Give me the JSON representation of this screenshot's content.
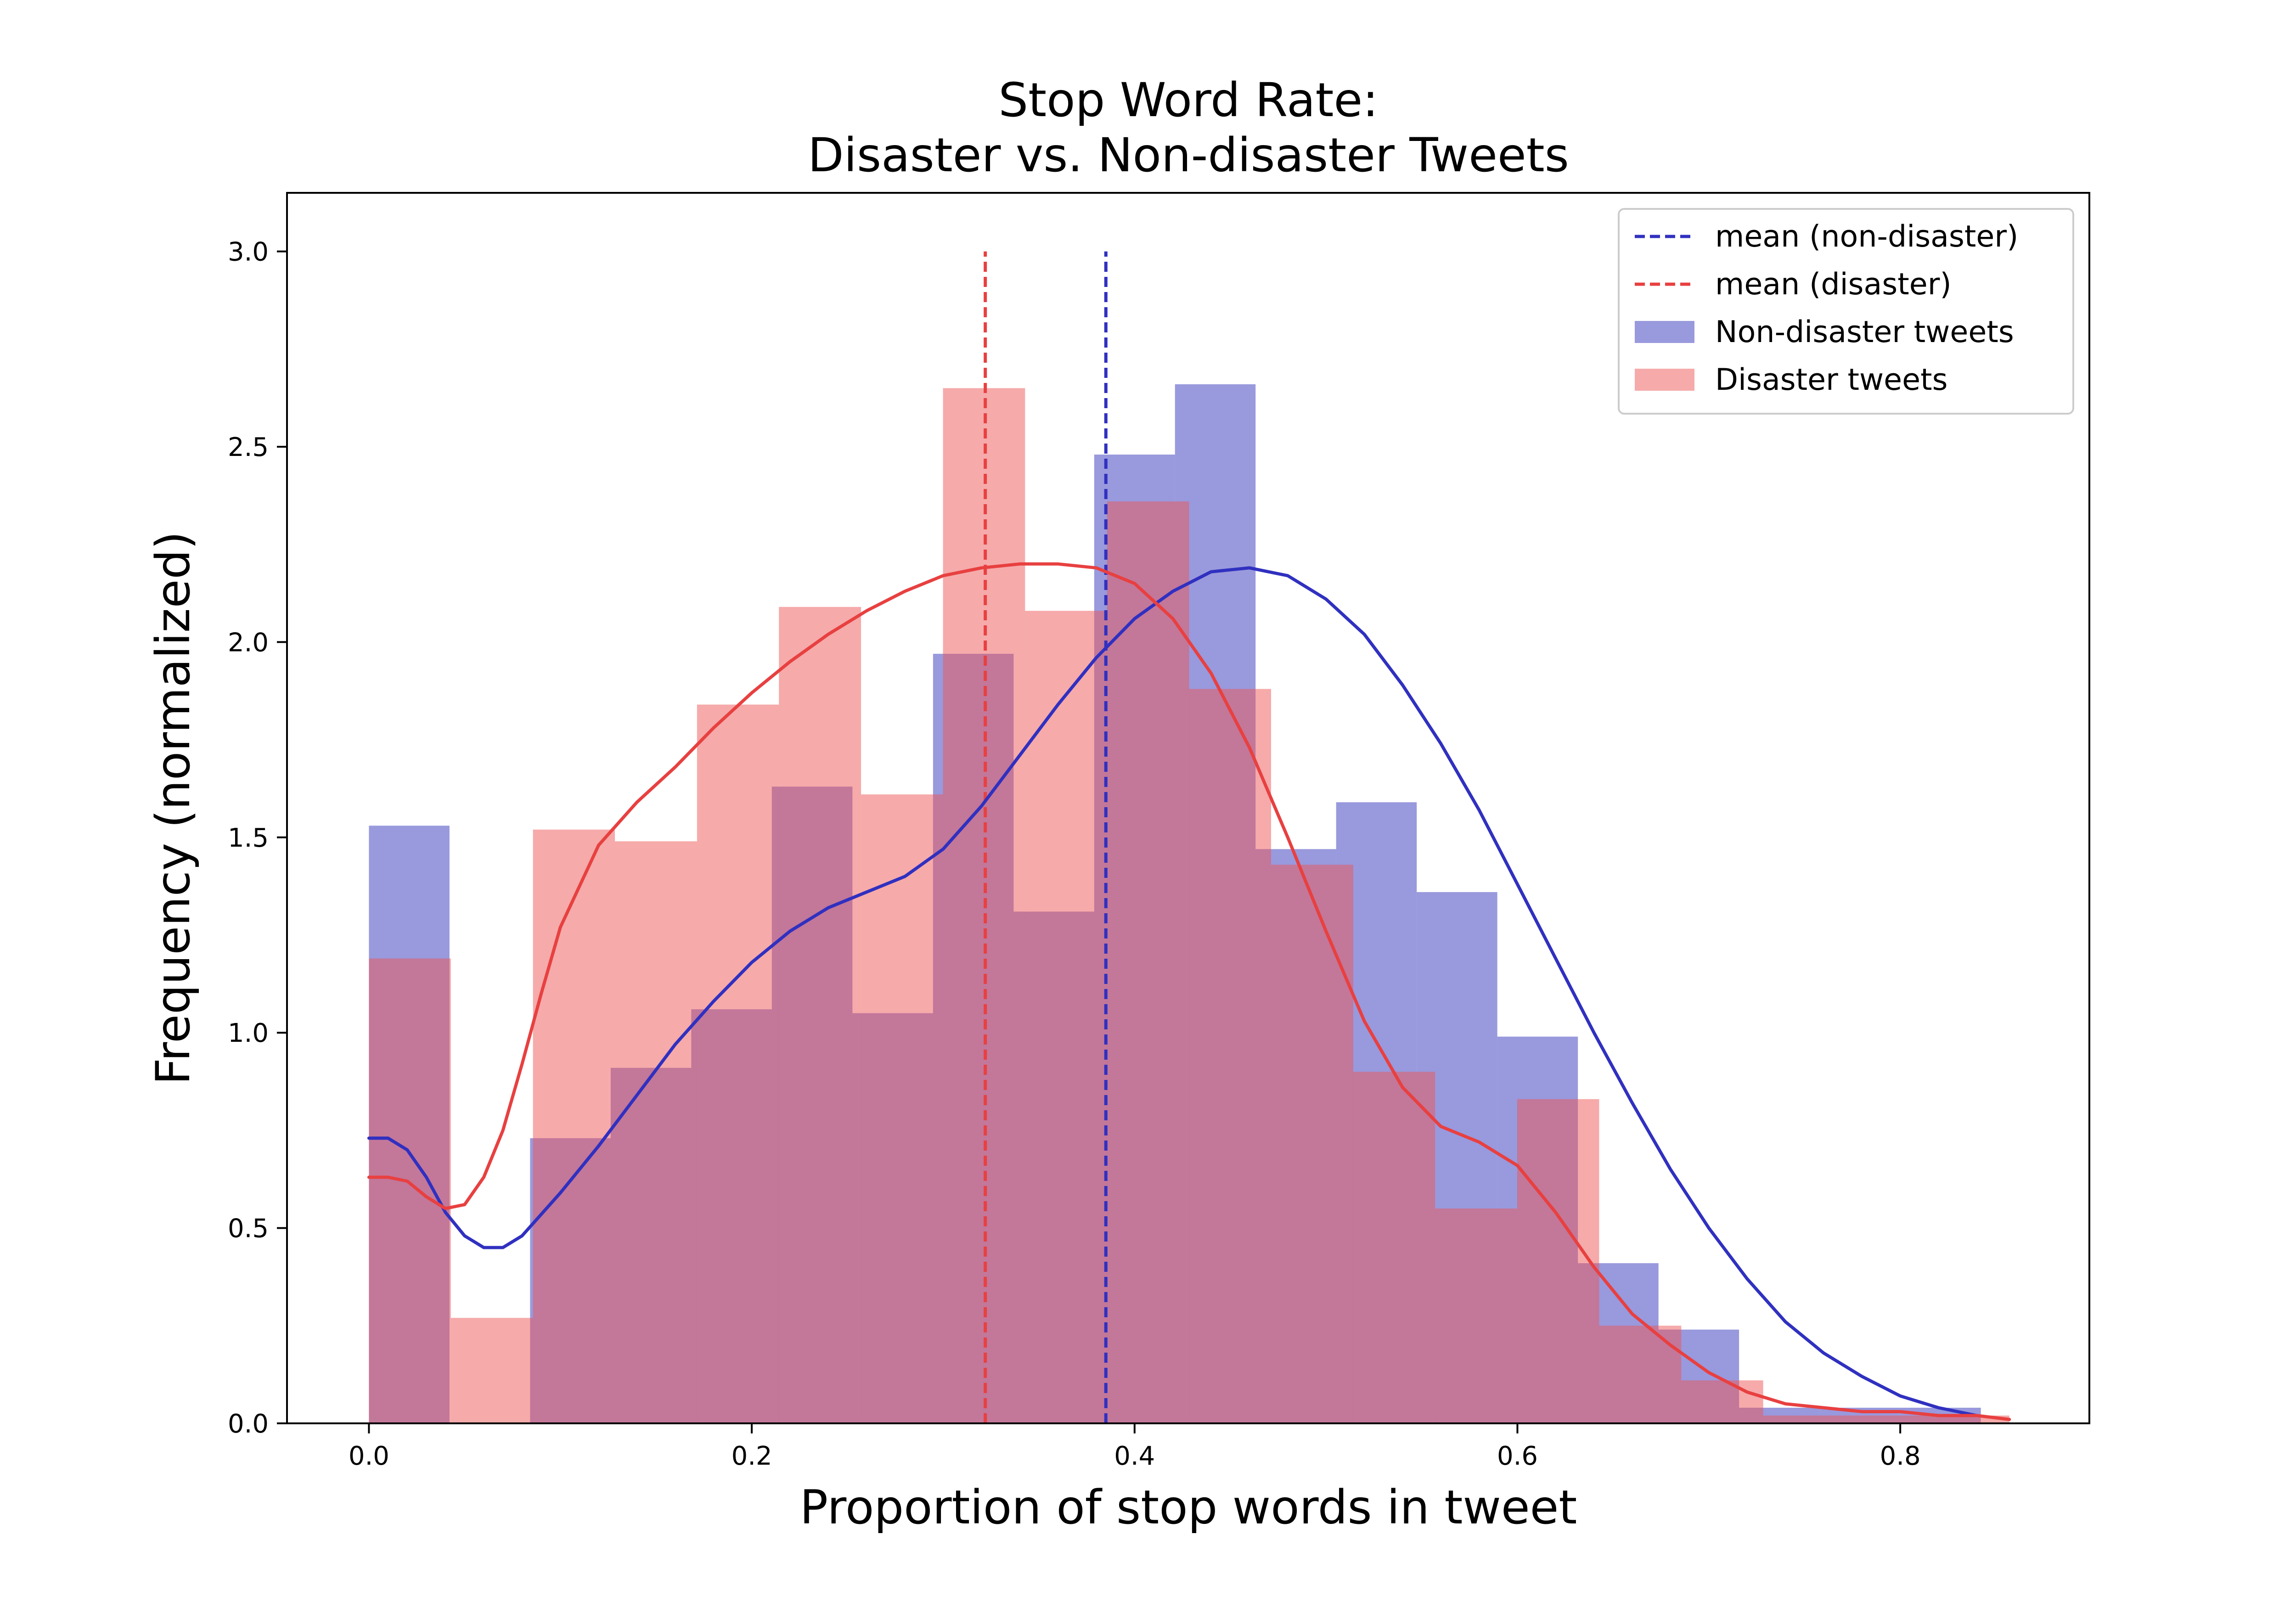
{
  "chart_data": {
    "type": "histogram",
    "title_lines": [
      "Stop Word Rate:",
      "Disaster vs. Non-disaster Tweets"
    ],
    "xlabel": "Proportion of stop words in tweet",
    "ylabel": "Frequency (normalized)",
    "xlim": [
      -0.0428,
      0.8988
    ],
    "ylim": [
      0,
      3.15
    ],
    "xticks": [
      0.0,
      0.2,
      0.4,
      0.6,
      0.8
    ],
    "xtick_labels": [
      "0.0",
      "0.2",
      "0.4",
      "0.6",
      "0.8"
    ],
    "yticks": [
      0.0,
      0.5,
      1.0,
      1.5,
      2.0,
      2.5,
      3.0
    ],
    "ytick_labels": [
      "0.0",
      "0.5",
      "1.0",
      "1.5",
      "2.0",
      "2.5",
      "3.0"
    ],
    "grid": false,
    "legend_position": "top-right",
    "legend": [
      {
        "label": "mean (non-disaster)",
        "kind": "dashed-line",
        "series": "non_disaster"
      },
      {
        "label": "mean (disaster)",
        "kind": "dashed-line",
        "series": "disaster"
      },
      {
        "label": "Non-disaster tweets",
        "kind": "patch",
        "series": "non_disaster"
      },
      {
        "label": "Disaster tweets",
        "kind": "patch",
        "series": "disaster"
      }
    ],
    "series": [
      {
        "id": "non_disaster",
        "name": "Non-disaster tweets",
        "color": "#3030c0",
        "fill_color": "#3333bb",
        "fill_opacity": 0.5,
        "bin_edges": [
          0.0,
          0.0421,
          0.0842,
          0.1263,
          0.1684,
          0.2105,
          0.2526,
          0.2947,
          0.3368,
          0.3789,
          0.4211,
          0.4632,
          0.5053,
          0.5474,
          0.5895,
          0.6316,
          0.6737,
          0.7158,
          0.7579,
          0.8,
          0.8421
        ],
        "values": [
          1.53,
          0.0,
          0.73,
          0.91,
          1.06,
          1.63,
          1.05,
          1.97,
          1.31,
          2.48,
          2.66,
          1.47,
          1.59,
          1.36,
          0.99,
          0.41,
          0.24,
          0.04,
          0.04,
          0.04
        ],
        "mean": 0.385,
        "mean_line_top": 3.0,
        "kde": [
          [
            0.0,
            0.73
          ],
          [
            0.01,
            0.73
          ],
          [
            0.02,
            0.7
          ],
          [
            0.03,
            0.63
          ],
          [
            0.04,
            0.54
          ],
          [
            0.05,
            0.48
          ],
          [
            0.06,
            0.45
          ],
          [
            0.07,
            0.45
          ],
          [
            0.08,
            0.48
          ],
          [
            0.1,
            0.59
          ],
          [
            0.12,
            0.71
          ],
          [
            0.14,
            0.84
          ],
          [
            0.16,
            0.97
          ],
          [
            0.18,
            1.08
          ],
          [
            0.2,
            1.18
          ],
          [
            0.22,
            1.26
          ],
          [
            0.24,
            1.32
          ],
          [
            0.26,
            1.36
          ],
          [
            0.28,
            1.4
          ],
          [
            0.3,
            1.47
          ],
          [
            0.32,
            1.58
          ],
          [
            0.34,
            1.71
          ],
          [
            0.36,
            1.84
          ],
          [
            0.38,
            1.96
          ],
          [
            0.4,
            2.06
          ],
          [
            0.42,
            2.13
          ],
          [
            0.44,
            2.18
          ],
          [
            0.46,
            2.19
          ],
          [
            0.48,
            2.17
          ],
          [
            0.5,
            2.11
          ],
          [
            0.52,
            2.02
          ],
          [
            0.54,
            1.89
          ],
          [
            0.56,
            1.74
          ],
          [
            0.58,
            1.57
          ],
          [
            0.6,
            1.38
          ],
          [
            0.62,
            1.19
          ],
          [
            0.64,
            1.0
          ],
          [
            0.66,
            0.82
          ],
          [
            0.68,
            0.65
          ],
          [
            0.7,
            0.5
          ],
          [
            0.72,
            0.37
          ],
          [
            0.74,
            0.26
          ],
          [
            0.76,
            0.18
          ],
          [
            0.78,
            0.12
          ],
          [
            0.8,
            0.07
          ],
          [
            0.82,
            0.04
          ],
          [
            0.84,
            0.02
          ]
        ]
      },
      {
        "id": "disaster",
        "name": "Disaster tweets",
        "color": "#e84040",
        "fill_color": "#ee5555",
        "fill_opacity": 0.5,
        "bin_edges": [
          0.0,
          0.0428,
          0.0857,
          0.1285,
          0.1714,
          0.2142,
          0.2571,
          0.2999,
          0.3428,
          0.3856,
          0.4285,
          0.4713,
          0.5142,
          0.557,
          0.5999,
          0.6427,
          0.6856,
          0.7284,
          0.7713,
          0.8141,
          0.857
        ],
        "values": [
          1.19,
          0.27,
          1.52,
          1.49,
          1.84,
          2.09,
          1.61,
          2.65,
          2.08,
          2.36,
          1.88,
          1.43,
          0.9,
          0.55,
          0.83,
          0.25,
          0.11,
          0.02,
          0.02,
          0.02
        ],
        "mean": 0.322,
        "mean_line_top": 3.0,
        "kde": [
          [
            0.0,
            0.63
          ],
          [
            0.01,
            0.63
          ],
          [
            0.02,
            0.62
          ],
          [
            0.03,
            0.58
          ],
          [
            0.04,
            0.55
          ],
          [
            0.05,
            0.56
          ],
          [
            0.06,
            0.63
          ],
          [
            0.07,
            0.75
          ],
          [
            0.08,
            0.92
          ],
          [
            0.09,
            1.1
          ],
          [
            0.1,
            1.27
          ],
          [
            0.12,
            1.48
          ],
          [
            0.14,
            1.59
          ],
          [
            0.16,
            1.68
          ],
          [
            0.18,
            1.78
          ],
          [
            0.2,
            1.87
          ],
          [
            0.22,
            1.95
          ],
          [
            0.24,
            2.02
          ],
          [
            0.26,
            2.08
          ],
          [
            0.28,
            2.13
          ],
          [
            0.3,
            2.17
          ],
          [
            0.32,
            2.19
          ],
          [
            0.34,
            2.2
          ],
          [
            0.36,
            2.2
          ],
          [
            0.38,
            2.19
          ],
          [
            0.4,
            2.15
          ],
          [
            0.42,
            2.06
          ],
          [
            0.44,
            1.92
          ],
          [
            0.46,
            1.73
          ],
          [
            0.48,
            1.5
          ],
          [
            0.5,
            1.26
          ],
          [
            0.52,
            1.03
          ],
          [
            0.54,
            0.86
          ],
          [
            0.56,
            0.76
          ],
          [
            0.58,
            0.72
          ],
          [
            0.6,
            0.66
          ],
          [
            0.62,
            0.54
          ],
          [
            0.64,
            0.4
          ],
          [
            0.66,
            0.28
          ],
          [
            0.68,
            0.2
          ],
          [
            0.7,
            0.13
          ],
          [
            0.72,
            0.08
          ],
          [
            0.74,
            0.05
          ],
          [
            0.76,
            0.04
          ],
          [
            0.78,
            0.03
          ],
          [
            0.8,
            0.03
          ],
          [
            0.82,
            0.02
          ],
          [
            0.84,
            0.02
          ],
          [
            0.857,
            0.01
          ]
        ]
      }
    ]
  }
}
